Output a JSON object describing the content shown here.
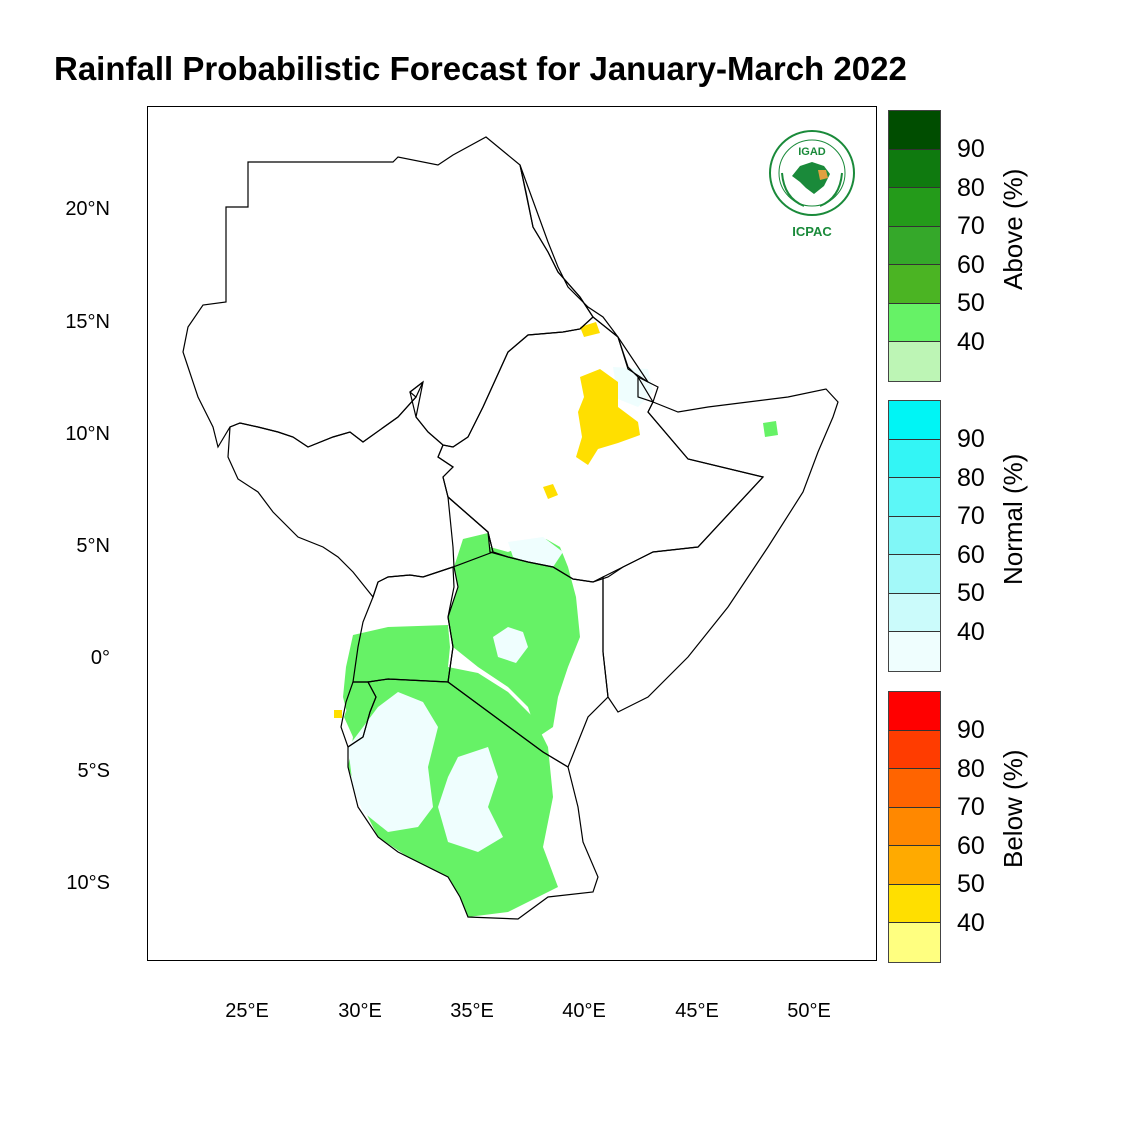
{
  "title": "Rainfall Probabilistic Forecast for January-March 2022",
  "lat_ticks": [
    "20°N",
    "15°N",
    "10°N",
    "5°N",
    "0°",
    "5°S",
    "10°S"
  ],
  "lon_ticks": [
    "25°E",
    "30°E",
    "35°E",
    "40°E",
    "45°E",
    "50°E"
  ],
  "legends": [
    {
      "label": "Above (%)",
      "ticks": [
        "90",
        "80",
        "70",
        "60",
        "50",
        "40"
      ],
      "colors": [
        "#004d00",
        "#0f7a0f",
        "#249b1a",
        "#35a82a",
        "#4bb423",
        "#66f266",
        "#bdf5b5"
      ]
    },
    {
      "label": "Normal (%)",
      "ticks": [
        "90",
        "80",
        "70",
        "60",
        "50",
        "40"
      ],
      "colors": [
        "#00f5f5",
        "#33f5f5",
        "#5cf7f7",
        "#80f7f7",
        "#a3f9f9",
        "#cbfbfb",
        "#effefe"
      ]
    },
    {
      "label": "Below (%)",
      "ticks": [
        "90",
        "80",
        "70",
        "60",
        "50",
        "40"
      ],
      "colors": [
        "#ff0000",
        "#ff3c00",
        "#ff6400",
        "#ff8800",
        "#ffaa00",
        "#ffdf00",
        "#ffff80"
      ]
    }
  ],
  "logo": {
    "top_text": "IGAD",
    "bottom_text": "ICPAC"
  },
  "category_colors": {
    "above_40": "#66f266",
    "normal_40": "#effefe",
    "below_40": "#ffdf00",
    "above_35": "#bdf5b5"
  }
}
